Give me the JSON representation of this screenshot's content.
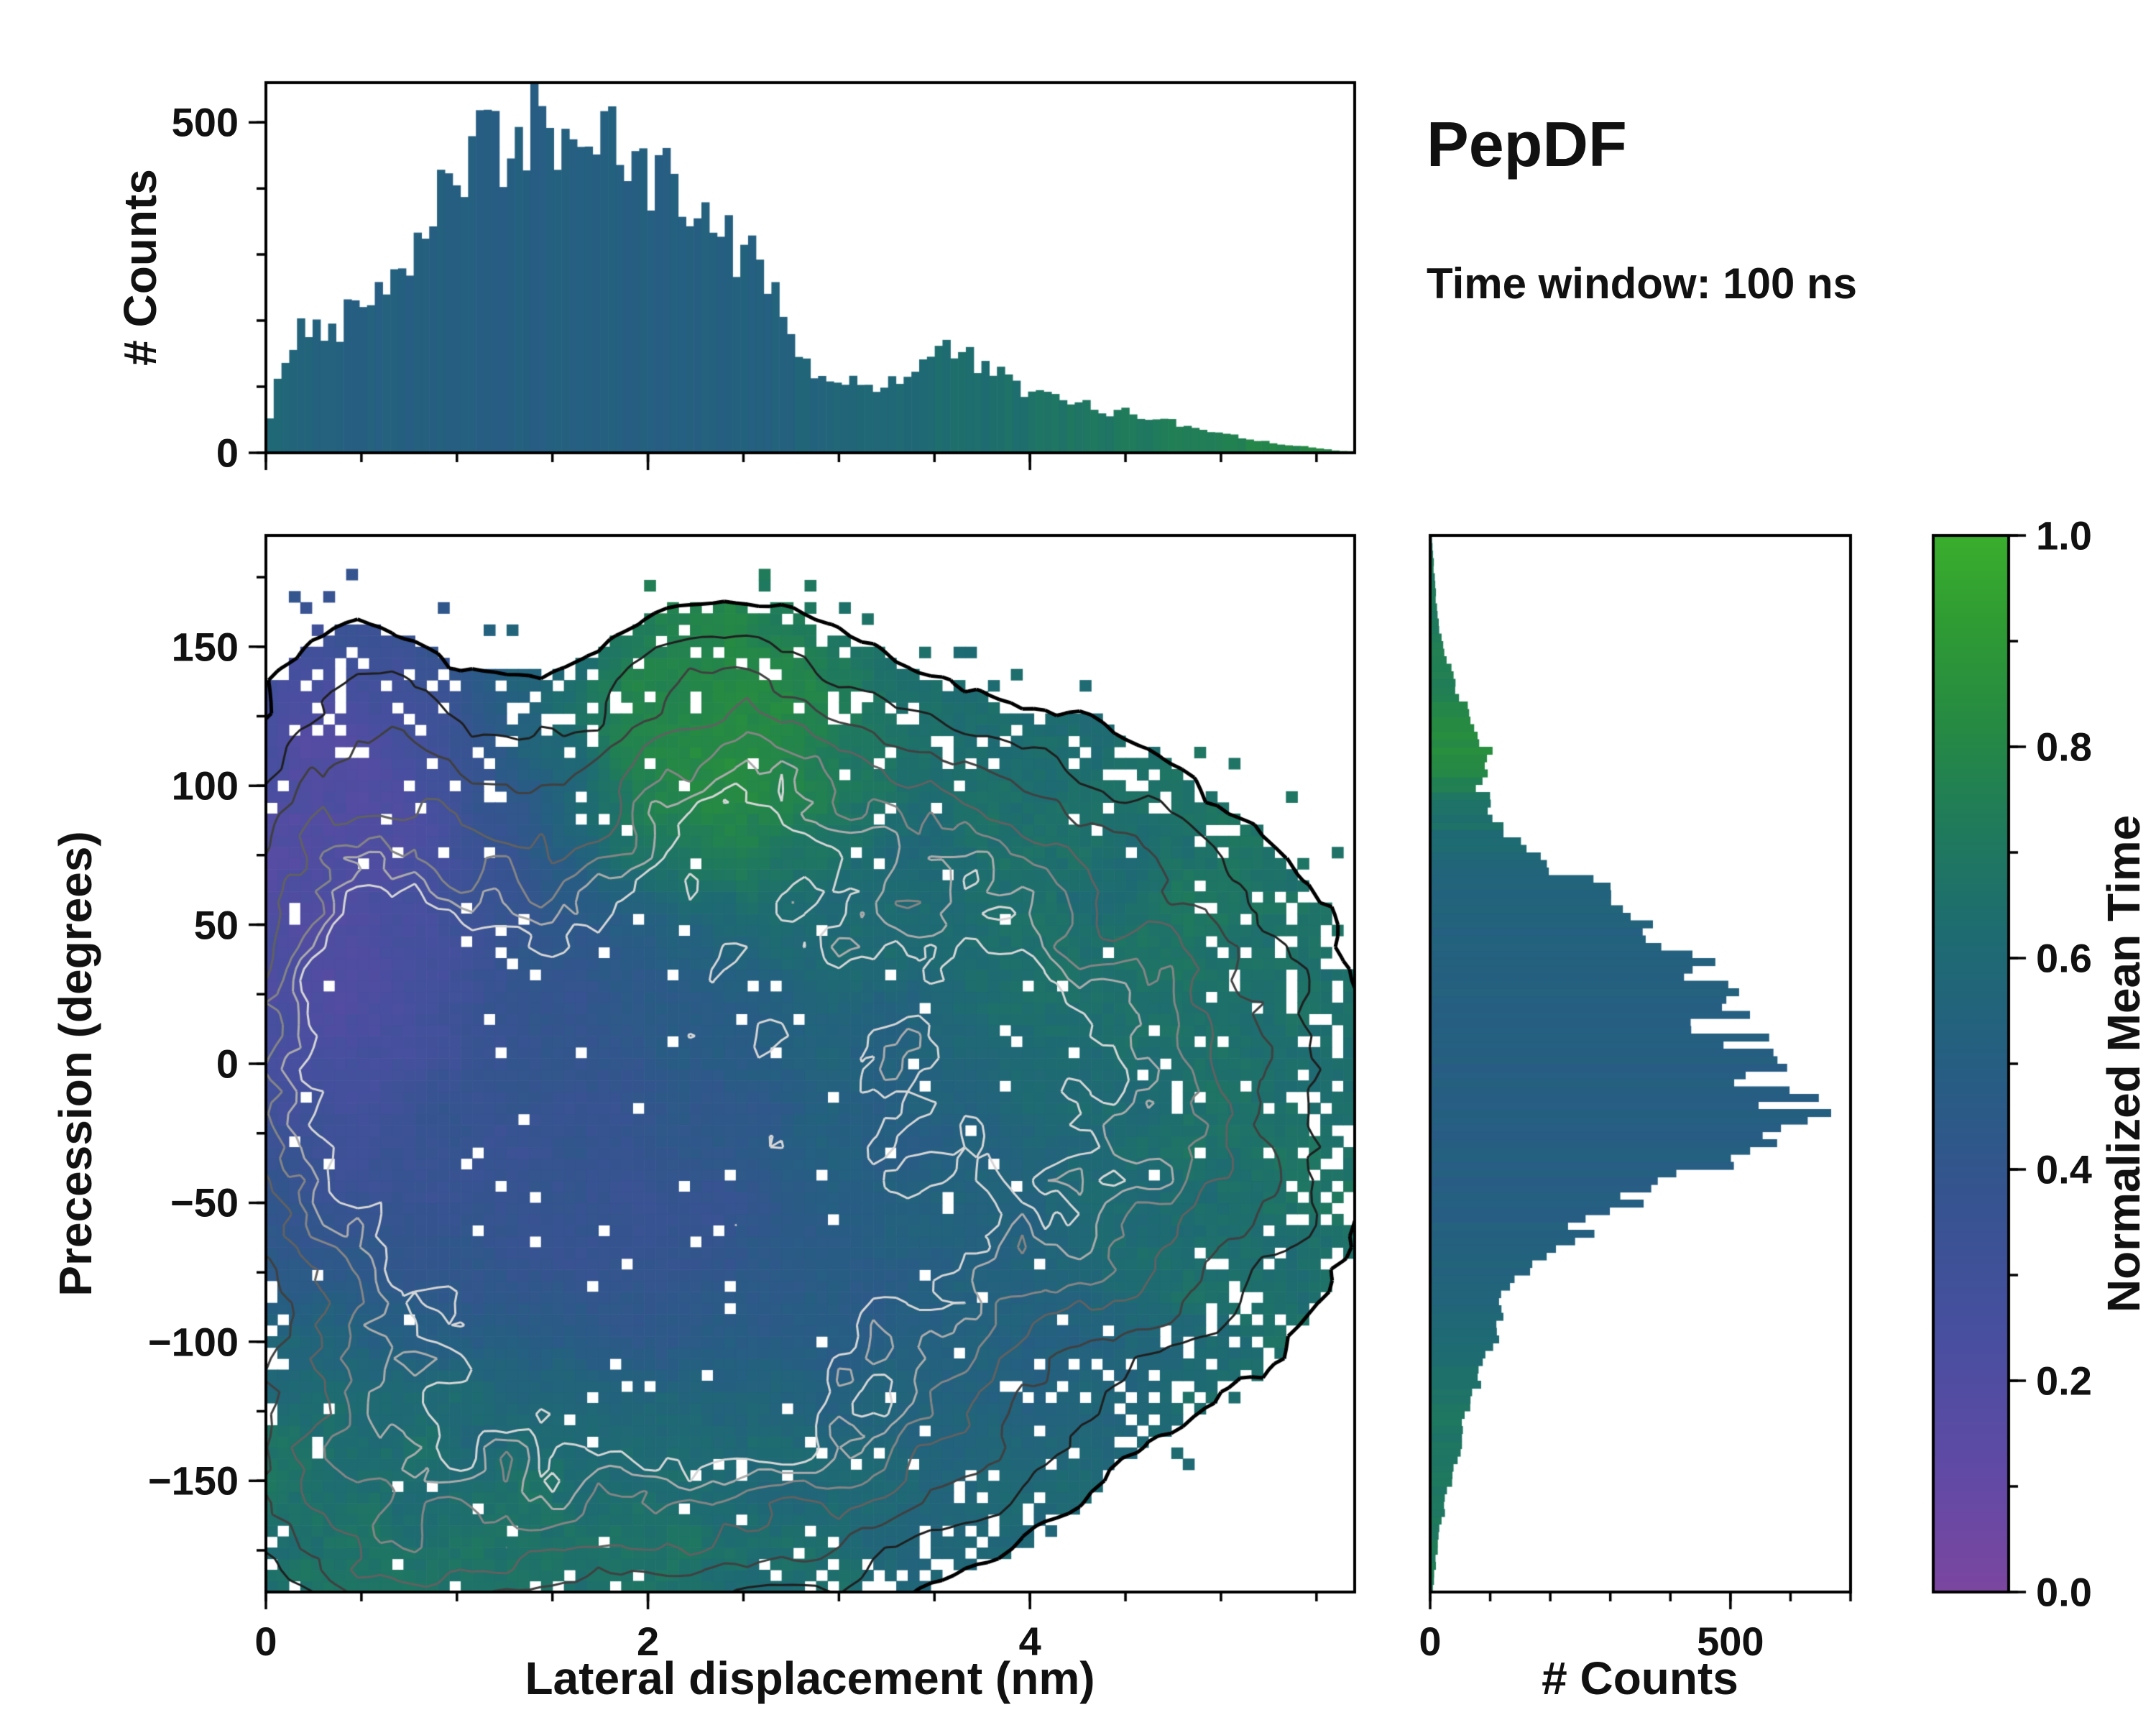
{
  "title": "PepDF",
  "subtitle": "Time window: 100 ns",
  "colormap": {
    "stops": [
      [
        0.0,
        "#7b46a0"
      ],
      [
        0.12,
        "#5f4aa5"
      ],
      [
        0.25,
        "#474f9f"
      ],
      [
        0.38,
        "#35548f"
      ],
      [
        0.5,
        "#265e82"
      ],
      [
        0.62,
        "#1e6b72"
      ],
      [
        0.72,
        "#1f7a5c"
      ],
      [
        0.82,
        "#268a43"
      ],
      [
        0.92,
        "#2f9c33"
      ],
      [
        1.0,
        "#3aae2d"
      ]
    ]
  },
  "chart_data": [
    {
      "id": "top_histogram",
      "type": "bar",
      "orientation": "vertical",
      "ylabel": "# Counts",
      "xlim": [
        0,
        5.7
      ],
      "ylim": [
        0,
        560
      ],
      "yticks": [
        0,
        500
      ],
      "bins": 140,
      "profile": [
        [
          0,
          25
        ],
        [
          0.1,
          150
        ],
        [
          0.2,
          190
        ],
        [
          0.35,
          185
        ],
        [
          0.5,
          235
        ],
        [
          0.65,
          270
        ],
        [
          0.8,
          330
        ],
        [
          0.95,
          420
        ],
        [
          1.1,
          460
        ],
        [
          1.25,
          455
        ],
        [
          1.4,
          500
        ],
        [
          1.55,
          480
        ],
        [
          1.7,
          490
        ],
        [
          1.85,
          445
        ],
        [
          2.0,
          420
        ],
        [
          2.15,
          395
        ],
        [
          2.3,
          365
        ],
        [
          2.45,
          315
        ],
        [
          2.6,
          280
        ],
        [
          2.7,
          225
        ],
        [
          2.8,
          150
        ],
        [
          2.9,
          115
        ],
        [
          3.05,
          105
        ],
        [
          3.2,
          100
        ],
        [
          3.35,
          120
        ],
        [
          3.5,
          150
        ],
        [
          3.6,
          160
        ],
        [
          3.75,
          130
        ],
        [
          3.9,
          105
        ],
        [
          4.05,
          88
        ],
        [
          4.2,
          75
        ],
        [
          4.35,
          68
        ],
        [
          4.5,
          60
        ],
        [
          4.65,
          55
        ],
        [
          4.8,
          42
        ],
        [
          5.0,
          30
        ],
        [
          5.2,
          20
        ],
        [
          5.4,
          10
        ],
        [
          5.6,
          4
        ],
        [
          5.7,
          2
        ]
      ],
      "color_profile": [
        [
          0,
          0.6
        ],
        [
          0.2,
          0.54
        ],
        [
          0.5,
          0.52
        ],
        [
          1.5,
          0.5
        ],
        [
          2.5,
          0.52
        ],
        [
          3.0,
          0.57
        ],
        [
          3.5,
          0.62
        ],
        [
          4.0,
          0.66
        ],
        [
          4.4,
          0.7
        ],
        [
          4.8,
          0.74
        ],
        [
          5.2,
          0.78
        ],
        [
          5.7,
          0.82
        ]
      ]
    },
    {
      "id": "main_heatmap",
      "type": "heatmap",
      "xlabel": "Lateral displacement (nm)",
      "ylabel": "Precession (degrees)",
      "value_label": "Normalized Mean Time",
      "xlim": [
        0,
        5.7
      ],
      "ylim": [
        -190,
        190
      ],
      "xticks": [
        0,
        2,
        4
      ],
      "yticks": [
        -150,
        -100,
        -50,
        0,
        50,
        100,
        150
      ],
      "grid_nx": 95,
      "grid_ny": 95,
      "mask_threshold": 0.18,
      "density_blobs": [
        {
          "a": 1.0,
          "cx": 1.4,
          "cy": -10,
          "sx": 0.9,
          "sy": 62
        },
        {
          "a": 0.55,
          "cx": 0.5,
          "cy": 40,
          "sx": 0.5,
          "sy": 75
        },
        {
          "a": 0.5,
          "cx": 2.4,
          "cy": 105,
          "sx": 0.5,
          "sy": 38
        },
        {
          "a": 0.65,
          "cx": 3.3,
          "cy": -20,
          "sx": 1.0,
          "sy": 75
        },
        {
          "a": 0.5,
          "cx": 4.6,
          "cy": -15,
          "sx": 0.8,
          "sy": 60
        },
        {
          "a": 0.55,
          "cx": 1.4,
          "cy": -130,
          "sx": 1.1,
          "sy": 50
        },
        {
          "a": 0.4,
          "cx": 2.8,
          "cy": -120,
          "sx": 0.8,
          "sy": 45
        },
        {
          "a": 0.35,
          "cx": 3.5,
          "cy": 75,
          "sx": 0.8,
          "sy": 35
        },
        {
          "a": 0.3,
          "cx": 0.6,
          "cy": -170,
          "sx": 0.6,
          "sy": 35
        }
      ],
      "meantime_background": {
        "value": 0.66,
        "weight": 0.5
      },
      "meantime_blobs": [
        {
          "v": 0.1,
          "w": 4.0,
          "cx": 0.35,
          "cy": 55,
          "sx": 0.45,
          "sy": 60
        },
        {
          "v": 0.3,
          "w": 3.0,
          "cx": 1.3,
          "cy": -5,
          "sx": 0.8,
          "sy": 60
        },
        {
          "v": 0.22,
          "w": 2.0,
          "cx": 1.7,
          "cy": -65,
          "sx": 0.9,
          "sy": 28
        },
        {
          "v": 0.48,
          "w": 2.5,
          "cx": 2.8,
          "cy": 0,
          "sx": 1.2,
          "sy": 80
        },
        {
          "v": 0.5,
          "w": 2.0,
          "cx": 3.6,
          "cy": -95,
          "sx": 0.8,
          "sy": 45
        },
        {
          "v": 0.9,
          "w": 6.0,
          "cx": 2.4,
          "cy": 108,
          "sx": 0.4,
          "sy": 30
        },
        {
          "v": 0.72,
          "w": 2.0,
          "cx": 3.6,
          "cy": 60,
          "sx": 1.0,
          "sy": 45
        },
        {
          "v": 0.7,
          "w": 1.6,
          "cx": 4.9,
          "cy": -20,
          "sx": 0.7,
          "sy": 80
        },
        {
          "v": 0.7,
          "w": 1.6,
          "cx": 1.2,
          "cy": -150,
          "sx": 1.2,
          "sy": 40
        },
        {
          "v": 0.62,
          "w": 1.5,
          "cx": 0.6,
          "cy": -100,
          "sx": 0.6,
          "sy": 50
        }
      ],
      "contour_levels": [
        0.18,
        0.3,
        0.44,
        0.58,
        0.7,
        0.8,
        0.88
      ],
      "contour_colors": [
        "#000000",
        "#1f1f1f",
        "#404040",
        "#616161",
        "#858585",
        "#ababab",
        "#d6d6d6"
      ]
    },
    {
      "id": "right_histogram",
      "type": "bar",
      "orientation": "horizontal",
      "xlabel": "# Counts",
      "ylim": [
        -190,
        190
      ],
      "xlim": [
        0,
        700
      ],
      "xticks": [
        0,
        500
      ],
      "bins": 140,
      "profile": [
        [
          -190,
          4
        ],
        [
          -170,
          14
        ],
        [
          -155,
          28
        ],
        [
          -140,
          48
        ],
        [
          -125,
          65
        ],
        [
          -110,
          85
        ],
        [
          -100,
          105
        ],
        [
          -90,
          120
        ],
        [
          -80,
          140
        ],
        [
          -70,
          180
        ],
        [
          -60,
          250
        ],
        [
          -50,
          330
        ],
        [
          -40,
          430
        ],
        [
          -30,
          545
        ],
        [
          -22,
          640
        ],
        [
          -15,
          615
        ],
        [
          -8,
          585
        ],
        [
          0,
          545
        ],
        [
          10,
          505
        ],
        [
          20,
          470
        ],
        [
          30,
          450
        ],
        [
          42,
          415
        ],
        [
          52,
          340
        ],
        [
          62,
          285
        ],
        [
          72,
          195
        ],
        [
          82,
          135
        ],
        [
          92,
          100
        ],
        [
          100,
          82
        ],
        [
          107,
          95
        ],
        [
          113,
          100
        ],
        [
          120,
          72
        ],
        [
          128,
          58
        ],
        [
          137,
          42
        ],
        [
          148,
          25
        ],
        [
          160,
          13
        ],
        [
          172,
          8
        ],
        [
          182,
          5
        ],
        [
          190,
          3
        ]
      ],
      "color_profile": [
        [
          -190,
          0.74
        ],
        [
          -150,
          0.71
        ],
        [
          -120,
          0.67
        ],
        [
          -100,
          0.61
        ],
        [
          -80,
          0.56
        ],
        [
          -60,
          0.52
        ],
        [
          -40,
          0.5
        ],
        [
          0,
          0.5
        ],
        [
          40,
          0.52
        ],
        [
          60,
          0.55
        ],
        [
          80,
          0.61
        ],
        [
          95,
          0.7
        ],
        [
          105,
          0.79
        ],
        [
          115,
          0.83
        ],
        [
          125,
          0.8
        ],
        [
          140,
          0.75
        ],
        [
          160,
          0.72
        ],
        [
          190,
          0.7
        ]
      ]
    },
    {
      "id": "colorbar",
      "type": "colorbar",
      "label": "Normalized Mean Time",
      "lim": [
        0,
        1
      ],
      "ticks": [
        0.0,
        0.2,
        0.4,
        0.6,
        0.8,
        1.0
      ]
    }
  ]
}
